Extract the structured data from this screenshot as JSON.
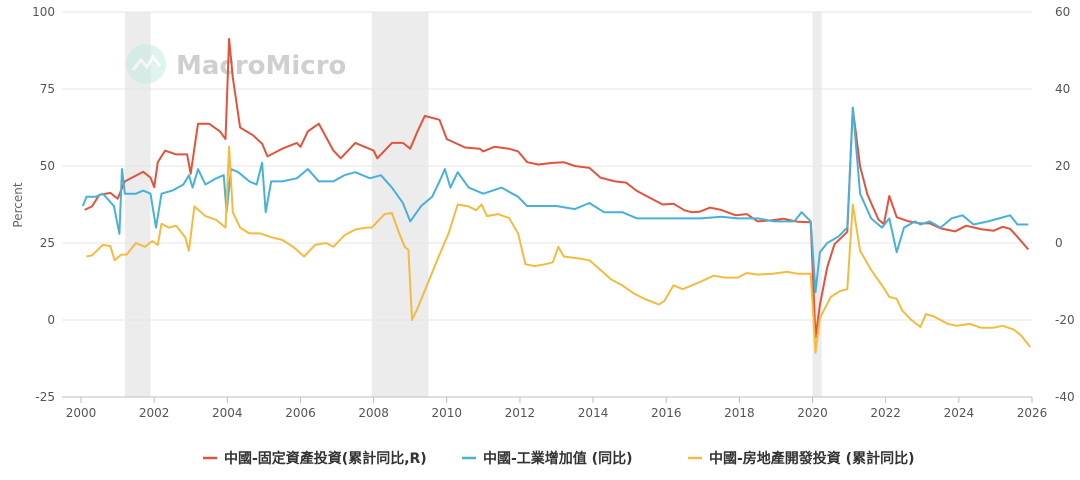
{
  "watermark": "MacroMicro",
  "chart_data": {
    "type": "line",
    "title": "",
    "ylabel_left": "Percent",
    "ylim_left": [
      -25,
      100
    ],
    "ylim_right": [
      -40,
      60
    ],
    "xlim": [
      2000,
      2026
    ],
    "x_ticks": [
      "2000",
      "2002",
      "2004",
      "2006",
      "2008",
      "2010",
      "2012",
      "2014",
      "2016",
      "2018",
      "2020",
      "2022",
      "2024",
      "2026"
    ],
    "y_left_ticks": [
      "-25",
      "0",
      "25",
      "50",
      "75",
      "100"
    ],
    "y_right_ticks": [
      "-40",
      "-20",
      "0",
      "20",
      "40",
      "60"
    ],
    "grid": true,
    "legend_position": "bottom",
    "shaded_periods": [
      [
        2001.2,
        2001.9
      ],
      [
        2007.95,
        2009.5
      ],
      [
        2020.0,
        2020.25
      ]
    ],
    "series": [
      {
        "name": "中國-固定資產投資(累計同比,R)",
        "color": "#e2533c",
        "axis": "right",
        "points": [
          [
            2000.1,
            8.6
          ],
          [
            2000.3,
            9.5
          ],
          [
            2000.5,
            12.5
          ],
          [
            2000.8,
            13.0
          ],
          [
            2001.0,
            11.5
          ],
          [
            2001.2,
            16.0
          ],
          [
            2001.5,
            17.5
          ],
          [
            2001.7,
            18.5
          ],
          [
            2001.9,
            17.0
          ],
          [
            2002.0,
            14.5
          ],
          [
            2002.1,
            21.0
          ],
          [
            2002.3,
            24.0
          ],
          [
            2002.6,
            23.0
          ],
          [
            2002.9,
            23.0
          ],
          [
            2003.0,
            18.0
          ],
          [
            2003.2,
            31.0
          ],
          [
            2003.5,
            31.0
          ],
          [
            2003.8,
            29.0
          ],
          [
            2003.95,
            27.0
          ],
          [
            2004.05,
            53.0
          ],
          [
            2004.15,
            43.0
          ],
          [
            2004.35,
            30.0
          ],
          [
            2004.7,
            28.0
          ],
          [
            2004.95,
            25.8
          ],
          [
            2005.1,
            22.5
          ],
          [
            2005.5,
            24.5
          ],
          [
            2005.9,
            26.0
          ],
          [
            2006.0,
            25.0
          ],
          [
            2006.2,
            29.0
          ],
          [
            2006.5,
            31.0
          ],
          [
            2006.9,
            24.0
          ],
          [
            2007.1,
            22.0
          ],
          [
            2007.5,
            26.0
          ],
          [
            2008.0,
            24.0
          ],
          [
            2008.1,
            22.0
          ],
          [
            2008.5,
            26.0
          ],
          [
            2008.8,
            26.0
          ],
          [
            2009.0,
            24.5
          ],
          [
            2009.2,
            29.0
          ],
          [
            2009.4,
            33.0
          ],
          [
            2009.8,
            32.0
          ],
          [
            2010.0,
            27.0
          ],
          [
            2010.5,
            24.8
          ],
          [
            2010.9,
            24.5
          ],
          [
            2011.0,
            23.8
          ],
          [
            2011.3,
            25.0
          ],
          [
            2011.7,
            24.5
          ],
          [
            2011.95,
            23.8
          ],
          [
            2012.2,
            21.0
          ],
          [
            2012.5,
            20.4
          ],
          [
            2012.9,
            20.8
          ],
          [
            2013.2,
            21.0
          ],
          [
            2013.5,
            20.0
          ],
          [
            2013.9,
            19.5
          ],
          [
            2014.2,
            17.0
          ],
          [
            2014.6,
            16.0
          ],
          [
            2014.9,
            15.7
          ],
          [
            2015.2,
            13.5
          ],
          [
            2015.6,
            11.5
          ],
          [
            2015.9,
            10.0
          ],
          [
            2016.2,
            10.2
          ],
          [
            2016.5,
            8.5
          ],
          [
            2016.7,
            8.0
          ],
          [
            2016.9,
            8.1
          ],
          [
            2017.2,
            9.2
          ],
          [
            2017.5,
            8.6
          ],
          [
            2017.9,
            7.2
          ],
          [
            2018.2,
            7.5
          ],
          [
            2018.5,
            5.6
          ],
          [
            2018.9,
            5.9
          ],
          [
            2019.2,
            6.3
          ],
          [
            2019.6,
            5.5
          ],
          [
            2019.95,
            5.4
          ],
          [
            2020.08,
            -24.5
          ],
          [
            2020.2,
            -16.1
          ],
          [
            2020.4,
            -6.3
          ],
          [
            2020.6,
            -0.3
          ],
          [
            2020.95,
            2.9
          ],
          [
            2021.1,
            35.0
          ],
          [
            2021.3,
            19.9
          ],
          [
            2021.5,
            12.6
          ],
          [
            2021.8,
            6.1
          ],
          [
            2021.95,
            4.9
          ],
          [
            2022.1,
            12.2
          ],
          [
            2022.3,
            6.7
          ],
          [
            2022.6,
            5.7
          ],
          [
            2022.95,
            5.1
          ],
          [
            2023.2,
            5.1
          ],
          [
            2023.5,
            3.8
          ],
          [
            2023.9,
            3.0
          ],
          [
            2024.2,
            4.5
          ],
          [
            2024.6,
            3.6
          ],
          [
            2024.95,
            3.2
          ],
          [
            2025.2,
            4.2
          ],
          [
            2025.4,
            3.7
          ],
          [
            2025.6,
            1.6
          ],
          [
            2025.9,
            -1.7
          ]
        ]
      },
      {
        "name": "中國-工業增加值 (同比)",
        "color": "#47b1d9",
        "axis": "left",
        "points": [
          [
            2000.05,
            37
          ],
          [
            2000.15,
            40
          ],
          [
            2000.4,
            40
          ],
          [
            2000.6,
            41
          ],
          [
            2000.9,
            37
          ],
          [
            2001.05,
            28
          ],
          [
            2001.12,
            49
          ],
          [
            2001.2,
            41
          ],
          [
            2001.5,
            41
          ],
          [
            2001.7,
            42
          ],
          [
            2001.9,
            41
          ],
          [
            2002.05,
            30
          ],
          [
            2002.2,
            41
          ],
          [
            2002.5,
            42
          ],
          [
            2002.8,
            44
          ],
          [
            2002.95,
            47
          ],
          [
            2003.05,
            43
          ],
          [
            2003.2,
            49
          ],
          [
            2003.4,
            44
          ],
          [
            2003.7,
            46
          ],
          [
            2003.9,
            47
          ],
          [
            2003.98,
            35
          ],
          [
            2004.1,
            49
          ],
          [
            2004.3,
            48
          ],
          [
            2004.6,
            45
          ],
          [
            2004.8,
            44
          ],
          [
            2004.95,
            51
          ],
          [
            2005.05,
            35
          ],
          [
            2005.2,
            45
          ],
          [
            2005.5,
            45
          ],
          [
            2005.9,
            46
          ],
          [
            2006.2,
            49
          ],
          [
            2006.5,
            45
          ],
          [
            2006.9,
            45
          ],
          [
            2007.2,
            47
          ],
          [
            2007.5,
            48
          ],
          [
            2007.9,
            46
          ],
          [
            2008.2,
            47
          ],
          [
            2008.5,
            43
          ],
          [
            2008.8,
            38
          ],
          [
            2009.0,
            32
          ],
          [
            2009.3,
            37
          ],
          [
            2009.6,
            40
          ],
          [
            2009.8,
            45
          ],
          [
            2009.95,
            49
          ],
          [
            2010.1,
            43
          ],
          [
            2010.3,
            48
          ],
          [
            2010.6,
            43
          ],
          [
            2011.0,
            41
          ],
          [
            2011.5,
            43
          ],
          [
            2011.95,
            40
          ],
          [
            2012.2,
            37
          ],
          [
            2012.6,
            37
          ],
          [
            2013.0,
            37
          ],
          [
            2013.5,
            36
          ],
          [
            2013.9,
            38
          ],
          [
            2014.3,
            35
          ],
          [
            2014.8,
            35
          ],
          [
            2015.2,
            33
          ],
          [
            2015.6,
            33
          ],
          [
            2015.95,
            33
          ],
          [
            2016.5,
            33
          ],
          [
            2016.95,
            33
          ],
          [
            2017.5,
            33.5
          ],
          [
            2017.95,
            33
          ],
          [
            2018.5,
            33
          ],
          [
            2018.95,
            32
          ],
          [
            2019.2,
            32
          ],
          [
            2019.5,
            32
          ],
          [
            2019.7,
            35
          ],
          [
            2019.95,
            32
          ],
          [
            2020.08,
            9
          ],
          [
            2020.2,
            22
          ],
          [
            2020.4,
            25
          ],
          [
            2020.7,
            27
          ],
          [
            2020.95,
            30
          ],
          [
            2021.1,
            69
          ],
          [
            2021.3,
            41
          ],
          [
            2021.6,
            33
          ],
          [
            2021.9,
            30
          ],
          [
            2022.1,
            33
          ],
          [
            2022.3,
            22
          ],
          [
            2022.5,
            30
          ],
          [
            2022.8,
            32
          ],
          [
            2022.95,
            31
          ],
          [
            2023.2,
            32
          ],
          [
            2023.5,
            30
          ],
          [
            2023.8,
            33
          ],
          [
            2024.1,
            34
          ],
          [
            2024.4,
            31
          ],
          [
            2024.8,
            32
          ],
          [
            2025.1,
            33
          ],
          [
            2025.4,
            34
          ],
          [
            2025.6,
            31
          ],
          [
            2025.9,
            31
          ]
        ]
      },
      {
        "name": "中國-房地產開發投資 (累計同比)",
        "color": "#f3bb3f",
        "axis": "right",
        "points": [
          [
            2000.15,
            -3.5
          ],
          [
            2000.3,
            -3.2
          ],
          [
            2000.6,
            -0.5
          ],
          [
            2000.8,
            -0.8
          ],
          [
            2000.92,
            -4.5
          ],
          [
            2001.1,
            -3.0
          ],
          [
            2001.25,
            -3.0
          ],
          [
            2001.5,
            0
          ],
          [
            2001.75,
            -1.0
          ],
          [
            2001.95,
            0.5
          ],
          [
            2002.1,
            -0.5
          ],
          [
            2002.2,
            5.0
          ],
          [
            2002.4,
            4.0
          ],
          [
            2002.6,
            4.5
          ],
          [
            2002.85,
            1.5
          ],
          [
            2002.95,
            -2.0
          ],
          [
            2003.1,
            9.5
          ],
          [
            2003.4,
            7.0
          ],
          [
            2003.7,
            6.0
          ],
          [
            2003.95,
            4.0
          ],
          [
            2004.05,
            25.0
          ],
          [
            2004.15,
            8.0
          ],
          [
            2004.35,
            4.0
          ],
          [
            2004.6,
            2.5
          ],
          [
            2004.9,
            2.5
          ],
          [
            2005.2,
            1.5
          ],
          [
            2005.5,
            0.8
          ],
          [
            2005.8,
            -1.0
          ],
          [
            2006.1,
            -3.5
          ],
          [
            2006.2,
            -2.5
          ],
          [
            2006.4,
            -0.5
          ],
          [
            2006.7,
            0.0
          ],
          [
            2006.9,
            -1.0
          ],
          [
            2007.2,
            2.0
          ],
          [
            2007.5,
            3.5
          ],
          [
            2007.8,
            4.0
          ],
          [
            2007.95,
            4.0
          ],
          [
            2008.1,
            5.5
          ],
          [
            2008.3,
            7.5
          ],
          [
            2008.5,
            7.8
          ],
          [
            2008.7,
            2.5
          ],
          [
            2008.85,
            -1.0
          ],
          [
            2008.95,
            -1.8
          ],
          [
            2009.05,
            -20.0
          ],
          [
            2009.2,
            -17.0
          ],
          [
            2009.5,
            -10.0
          ],
          [
            2009.8,
            -3.0
          ],
          [
            2010.05,
            2.5
          ],
          [
            2010.3,
            10.0
          ],
          [
            2010.6,
            9.5
          ],
          [
            2010.8,
            8.5
          ],
          [
            2010.95,
            10.0
          ],
          [
            2011.1,
            7.0
          ],
          [
            2011.4,
            7.5
          ],
          [
            2011.7,
            6.5
          ],
          [
            2011.95,
            2.5
          ],
          [
            2012.15,
            -5.5
          ],
          [
            2012.4,
            -6.0
          ],
          [
            2012.7,
            -5.5
          ],
          [
            2012.9,
            -5.0
          ],
          [
            2013.05,
            -1.0
          ],
          [
            2013.2,
            -3.5
          ],
          [
            2013.6,
            -4.0
          ],
          [
            2013.9,
            -4.5
          ],
          [
            2014.2,
            -7.0
          ],
          [
            2014.5,
            -9.5
          ],
          [
            2014.8,
            -11.0
          ],
          [
            2015.1,
            -13.0
          ],
          [
            2015.4,
            -14.5
          ],
          [
            2015.8,
            -16.0
          ],
          [
            2015.95,
            -15.0
          ],
          [
            2016.2,
            -11.0
          ],
          [
            2016.45,
            -12.0
          ],
          [
            2016.7,
            -11.0
          ],
          [
            2016.95,
            -10.0
          ],
          [
            2017.3,
            -8.5
          ],
          [
            2017.6,
            -9.0
          ],
          [
            2017.95,
            -9.0
          ],
          [
            2018.2,
            -7.8
          ],
          [
            2018.5,
            -8.2
          ],
          [
            2018.9,
            -8.0
          ],
          [
            2019.3,
            -7.5
          ],
          [
            2019.6,
            -8.0
          ],
          [
            2019.95,
            -8.0
          ],
          [
            2020.08,
            -28.5
          ],
          [
            2020.2,
            -19.5
          ],
          [
            2020.5,
            -14.0
          ],
          [
            2020.75,
            -12.5
          ],
          [
            2020.95,
            -12.0
          ],
          [
            2021.1,
            10.0
          ],
          [
            2021.3,
            -2.0
          ],
          [
            2021.6,
            -7.0
          ],
          [
            2021.9,
            -11.0
          ],
          [
            2022.1,
            -14.0
          ],
          [
            2022.3,
            -14.5
          ],
          [
            2022.45,
            -17.5
          ],
          [
            2022.7,
            -20.0
          ],
          [
            2022.95,
            -21.8
          ],
          [
            2023.1,
            -18.5
          ],
          [
            2023.3,
            -19.0
          ],
          [
            2023.7,
            -21.0
          ],
          [
            2023.95,
            -21.5
          ],
          [
            2024.3,
            -21.0
          ],
          [
            2024.6,
            -22.0
          ],
          [
            2024.95,
            -22.0
          ],
          [
            2025.2,
            -21.5
          ],
          [
            2025.5,
            -22.5
          ],
          [
            2025.7,
            -24.0
          ],
          [
            2025.95,
            -27.0
          ]
        ]
      }
    ]
  }
}
